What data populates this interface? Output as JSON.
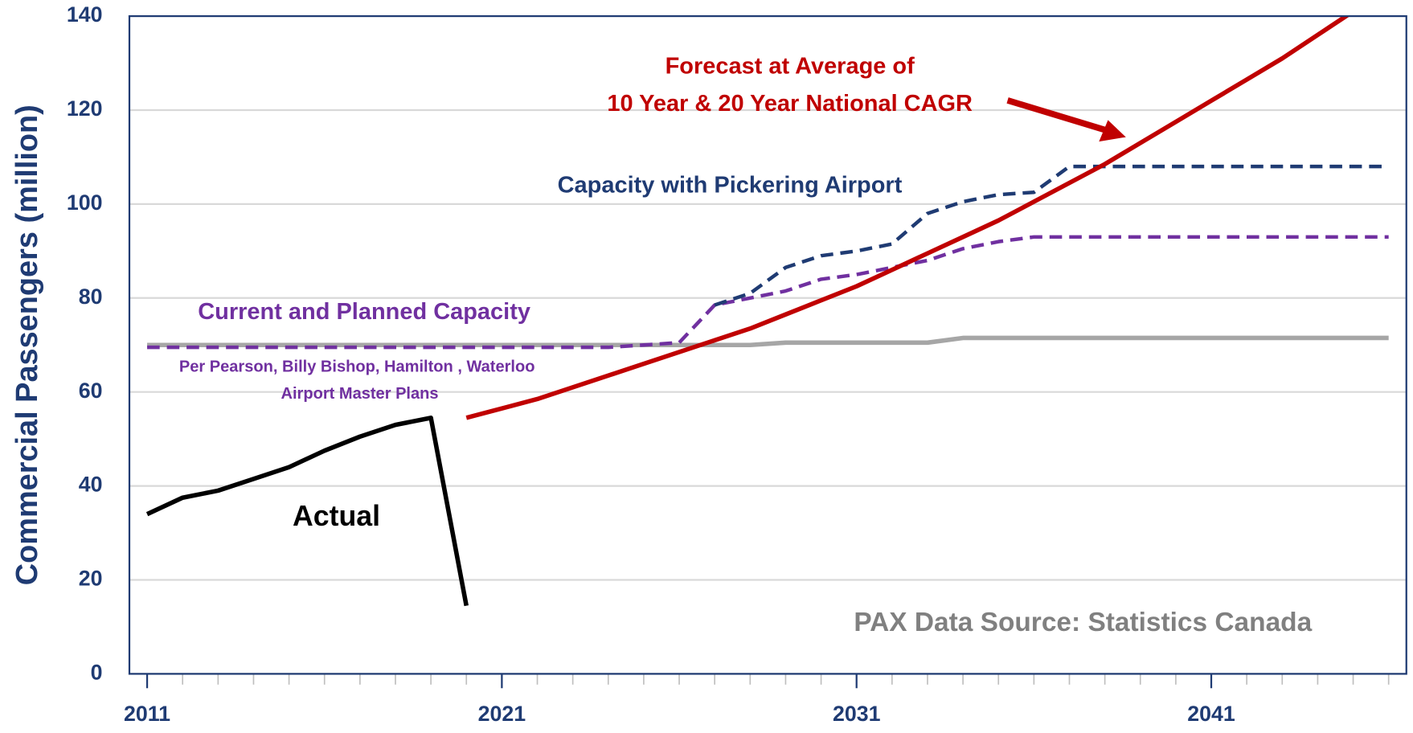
{
  "chart_data": {
    "type": "line",
    "y_label": "Commercial Passengers (million)",
    "annotations": [
      "Forecast at Average of",
      "10 Year & 20 Year National CAGR",
      "Capacity with Pickering Airport",
      "Current and Planned Capacity",
      "Per Pearson, Billy Bishop, Hamilton , Waterloo",
      "Airport Master Plans",
      "Actual",
      "PAX Data Source: Statistics Canada"
    ],
    "x": [
      2011,
      2012,
      2013,
      2014,
      2015,
      2016,
      2017,
      2018,
      2019,
      2020,
      2021,
      2022,
      2023,
      2024,
      2025,
      2026,
      2027,
      2028,
      2029,
      2030,
      2031,
      2032,
      2033,
      2034,
      2035,
      2036,
      2037,
      2038,
      2039,
      2040,
      2041,
      2042,
      2043,
      2044,
      2045,
      2046
    ],
    "series": [
      {
        "color": "#a6a6a6",
        "dash": false,
        "values": [
          70,
          70,
          70,
          70,
          70,
          70,
          70,
          70,
          70,
          70,
          70,
          70,
          70,
          70,
          70,
          70,
          70,
          70,
          70.5,
          70.5,
          70.5,
          70.5,
          70.5,
          71.5,
          71.5,
          71.5,
          71.5,
          71.5,
          71.5,
          71.5,
          71.5,
          71.5,
          71.5,
          71.5,
          71.5,
          71.5
        ]
      },
      {
        "color": "#7030a0",
        "dash": true,
        "values": [
          69.5,
          69.5,
          69.5,
          69.5,
          69.5,
          69.5,
          69.5,
          69.5,
          69.5,
          69.5,
          69.5,
          69.5,
          69.5,
          69.5,
          70,
          70.5,
          78.5,
          80,
          81.5,
          84,
          85,
          86.5,
          88,
          90.5,
          92,
          93,
          93,
          93,
          93,
          93,
          93,
          93,
          93,
          93,
          93,
          93
        ]
      },
      {
        "color": "#1f3b73",
        "dash": true,
        "values": [
          null,
          null,
          null,
          null,
          null,
          null,
          null,
          null,
          null,
          null,
          null,
          null,
          null,
          null,
          null,
          null,
          78.5,
          81,
          86.5,
          89,
          90,
          91.5,
          98,
          100.5,
          102,
          102.5,
          108,
          108,
          108,
          108,
          108,
          108,
          108,
          108,
          108,
          108
        ]
      },
      {
        "color": "#c00000",
        "dash": false,
        "values": [
          null,
          null,
          null,
          null,
          null,
          null,
          null,
          null,
          null,
          54.5,
          56.5,
          58.5,
          61,
          63.5,
          66,
          68.5,
          71,
          73.5,
          76.5,
          79.5,
          82.5,
          86,
          89.5,
          93,
          96.5,
          100.5,
          104.5,
          108.5,
          113,
          117.5,
          122,
          126.5,
          131,
          136,
          141,
          null
        ]
      },
      {
        "color": "#000000",
        "dash": false,
        "values": [
          34,
          37.5,
          39,
          41.5,
          44,
          47.5,
          50.5,
          53,
          54.5,
          14.5,
          null,
          null,
          null,
          null,
          null,
          null,
          null,
          null,
          null,
          null,
          null,
          null,
          null,
          null,
          null,
          null,
          null,
          null,
          null,
          null,
          null,
          null,
          null,
          null,
          null,
          null
        ]
      }
    ],
    "xlim": [
      2010.5,
      2046.5
    ],
    "xticks": [
      2011,
      2021,
      2031,
      2041
    ],
    "xminorticks": [
      2011,
      2012,
      2013,
      2014,
      2015,
      2016,
      2017,
      2018,
      2019,
      2020,
      2021,
      2022,
      2023,
      2024,
      2025,
      2026,
      2027,
      2028,
      2029,
      2030,
      2031,
      2032,
      2033,
      2034,
      2035,
      2036,
      2037,
      2038,
      2039,
      2040,
      2041,
      2042,
      2043,
      2044,
      2045,
      2046
    ],
    "ylim": [
      0,
      140
    ],
    "yticks": [
      0,
      20,
      40,
      60,
      80,
      100,
      120,
      140
    ],
    "grid": true
  }
}
